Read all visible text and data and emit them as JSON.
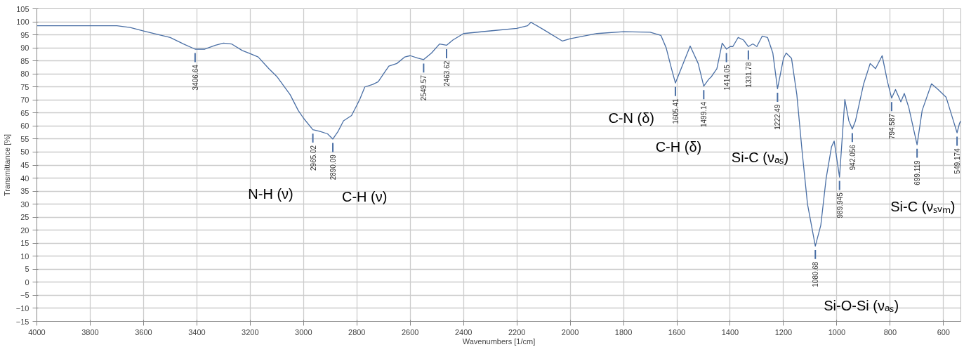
{
  "chart_data": {
    "type": "line",
    "xlabel": "Wavenumbers [1/cm]",
    "ylabel": "Transmittance [%]",
    "xlim": [
      4000,
      535
    ],
    "ylim": [
      -15,
      105
    ],
    "xticks": [
      4000,
      3800,
      3600,
      3400,
      3200,
      3000,
      2800,
      2600,
      2400,
      2200,
      2000,
      1800,
      1600,
      1400,
      1200,
      1000,
      800,
      600
    ],
    "yticks": [
      -15,
      -10,
      -5,
      0,
      5,
      10,
      15,
      20,
      25,
      30,
      35,
      40,
      45,
      50,
      55,
      60,
      65,
      70,
      75,
      80,
      85,
      90,
      95,
      100,
      105
    ],
    "grid": true,
    "marker": "none",
    "line_style": "solid",
    "x": [
      4000,
      3900,
      3800,
      3700,
      3650,
      3600,
      3500,
      3450,
      3406.64,
      3370,
      3330,
      3300,
      3270,
      3230,
      3200,
      3170,
      3130,
      3100,
      3050,
      3020,
      3000,
      2965.02,
      2940,
      2910,
      2890.09,
      2870,
      2850,
      2820,
      2790,
      2770,
      2740,
      2720,
      2700,
      2680,
      2650,
      2620,
      2600,
      2570,
      2549.57,
      2520,
      2490,
      2463.62,
      2440,
      2400,
      2300,
      2200,
      2160,
      2147,
      2100,
      2029,
      2000,
      1900,
      1800,
      1700,
      1660,
      1640,
      1620,
      1605.41,
      1580,
      1550,
      1520,
      1499.14,
      1480,
      1470,
      1450,
      1430,
      1414.05,
      1400,
      1390,
      1370,
      1350,
      1331.78,
      1315,
      1300,
      1280,
      1260,
      1240,
      1222.49,
      1200,
      1190,
      1170,
      1150,
      1130,
      1110,
      1080.68,
      1060,
      1040,
      1020,
      1010,
      989.945,
      970,
      955,
      942.056,
      930,
      900,
      875,
      855,
      830,
      810,
      794.587,
      780,
      760,
      747,
      730,
      699.119,
      680,
      645,
      620,
      590,
      560,
      549.174,
      540,
      535
    ],
    "series": [
      {
        "color": "#4a6fa5",
        "values": [
          98.5,
          98.5,
          98.5,
          98.5,
          97.8,
          96.5,
          94,
          91.5,
          89.5,
          89.5,
          91,
          91.8,
          91.5,
          89,
          87.8,
          86.5,
          82,
          79,
          72,
          66,
          63,
          58.6,
          58,
          57,
          55,
          58,
          62,
          64,
          70,
          75,
          76,
          77,
          80,
          83,
          84,
          86.5,
          87,
          86,
          85.5,
          88,
          91.5,
          91,
          93,
          95.5,
          96.5,
          97.5,
          98.5,
          99.8,
          97,
          92.6,
          93.5,
          95.5,
          96.2,
          96,
          94.8,
          90,
          82,
          76.5,
          83,
          90.7,
          84,
          75.3,
          78,
          79,
          82,
          91.8,
          89.5,
          90.5,
          90.5,
          94,
          93,
          90.5,
          91.5,
          90.5,
          94.5,
          94,
          88,
          74.3,
          86,
          88,
          86,
          72,
          50,
          30,
          13.9,
          22,
          40,
          52,
          54.2,
          40.4,
          70.2,
          62,
          58.8,
          62,
          76,
          84,
          82,
          87,
          77,
          70.7,
          74,
          69.3,
          72.5,
          67,
          52.8,
          66,
          76.2,
          74,
          71,
          61,
          57.4,
          61,
          62
        ]
      }
    ],
    "annotations": [
      {
        "text": "3406.64",
        "x": 3406.64,
        "y": 89.5
      },
      {
        "text": "2965.02",
        "x": 2965.02,
        "y": 58.6
      },
      {
        "text": "2890.09",
        "x": 2890.09,
        "y": 55
      },
      {
        "text": "2549.57",
        "x": 2549.57,
        "y": 85.5
      },
      {
        "text": "2463.62",
        "x": 2463.62,
        "y": 91
      },
      {
        "text": "1605.41",
        "x": 1605.41,
        "y": 76.5
      },
      {
        "text": "1499.14",
        "x": 1499.14,
        "y": 75.3
      },
      {
        "text": "1414.05",
        "x": 1414.05,
        "y": 89.5
      },
      {
        "text": "1331.78",
        "x": 1331.78,
        "y": 90.5
      },
      {
        "text": "1222.49",
        "x": 1222.49,
        "y": 74.3
      },
      {
        "text": "1080.68",
        "x": 1080.68,
        "y": 13.9
      },
      {
        "text": "989.945",
        "x": 989.945,
        "y": 40.4
      },
      {
        "text": "942.056",
        "x": 942.056,
        "y": 58.8
      },
      {
        "text": "794.587",
        "x": 794.587,
        "y": 70.7
      },
      {
        "text": "699.119",
        "x": 699.119,
        "y": 52.8
      },
      {
        "text": "549.174",
        "x": 549.174,
        "y": 57.4
      },
      "N-H (ν)",
      "C-H (ν)",
      "C-N (δ)",
      "C-H (δ)",
      "Si-C (νₐₛ)",
      "Si-O-Si (νₐₛ)",
      "Si-C (νₛᵥₘ)"
    ]
  }
}
